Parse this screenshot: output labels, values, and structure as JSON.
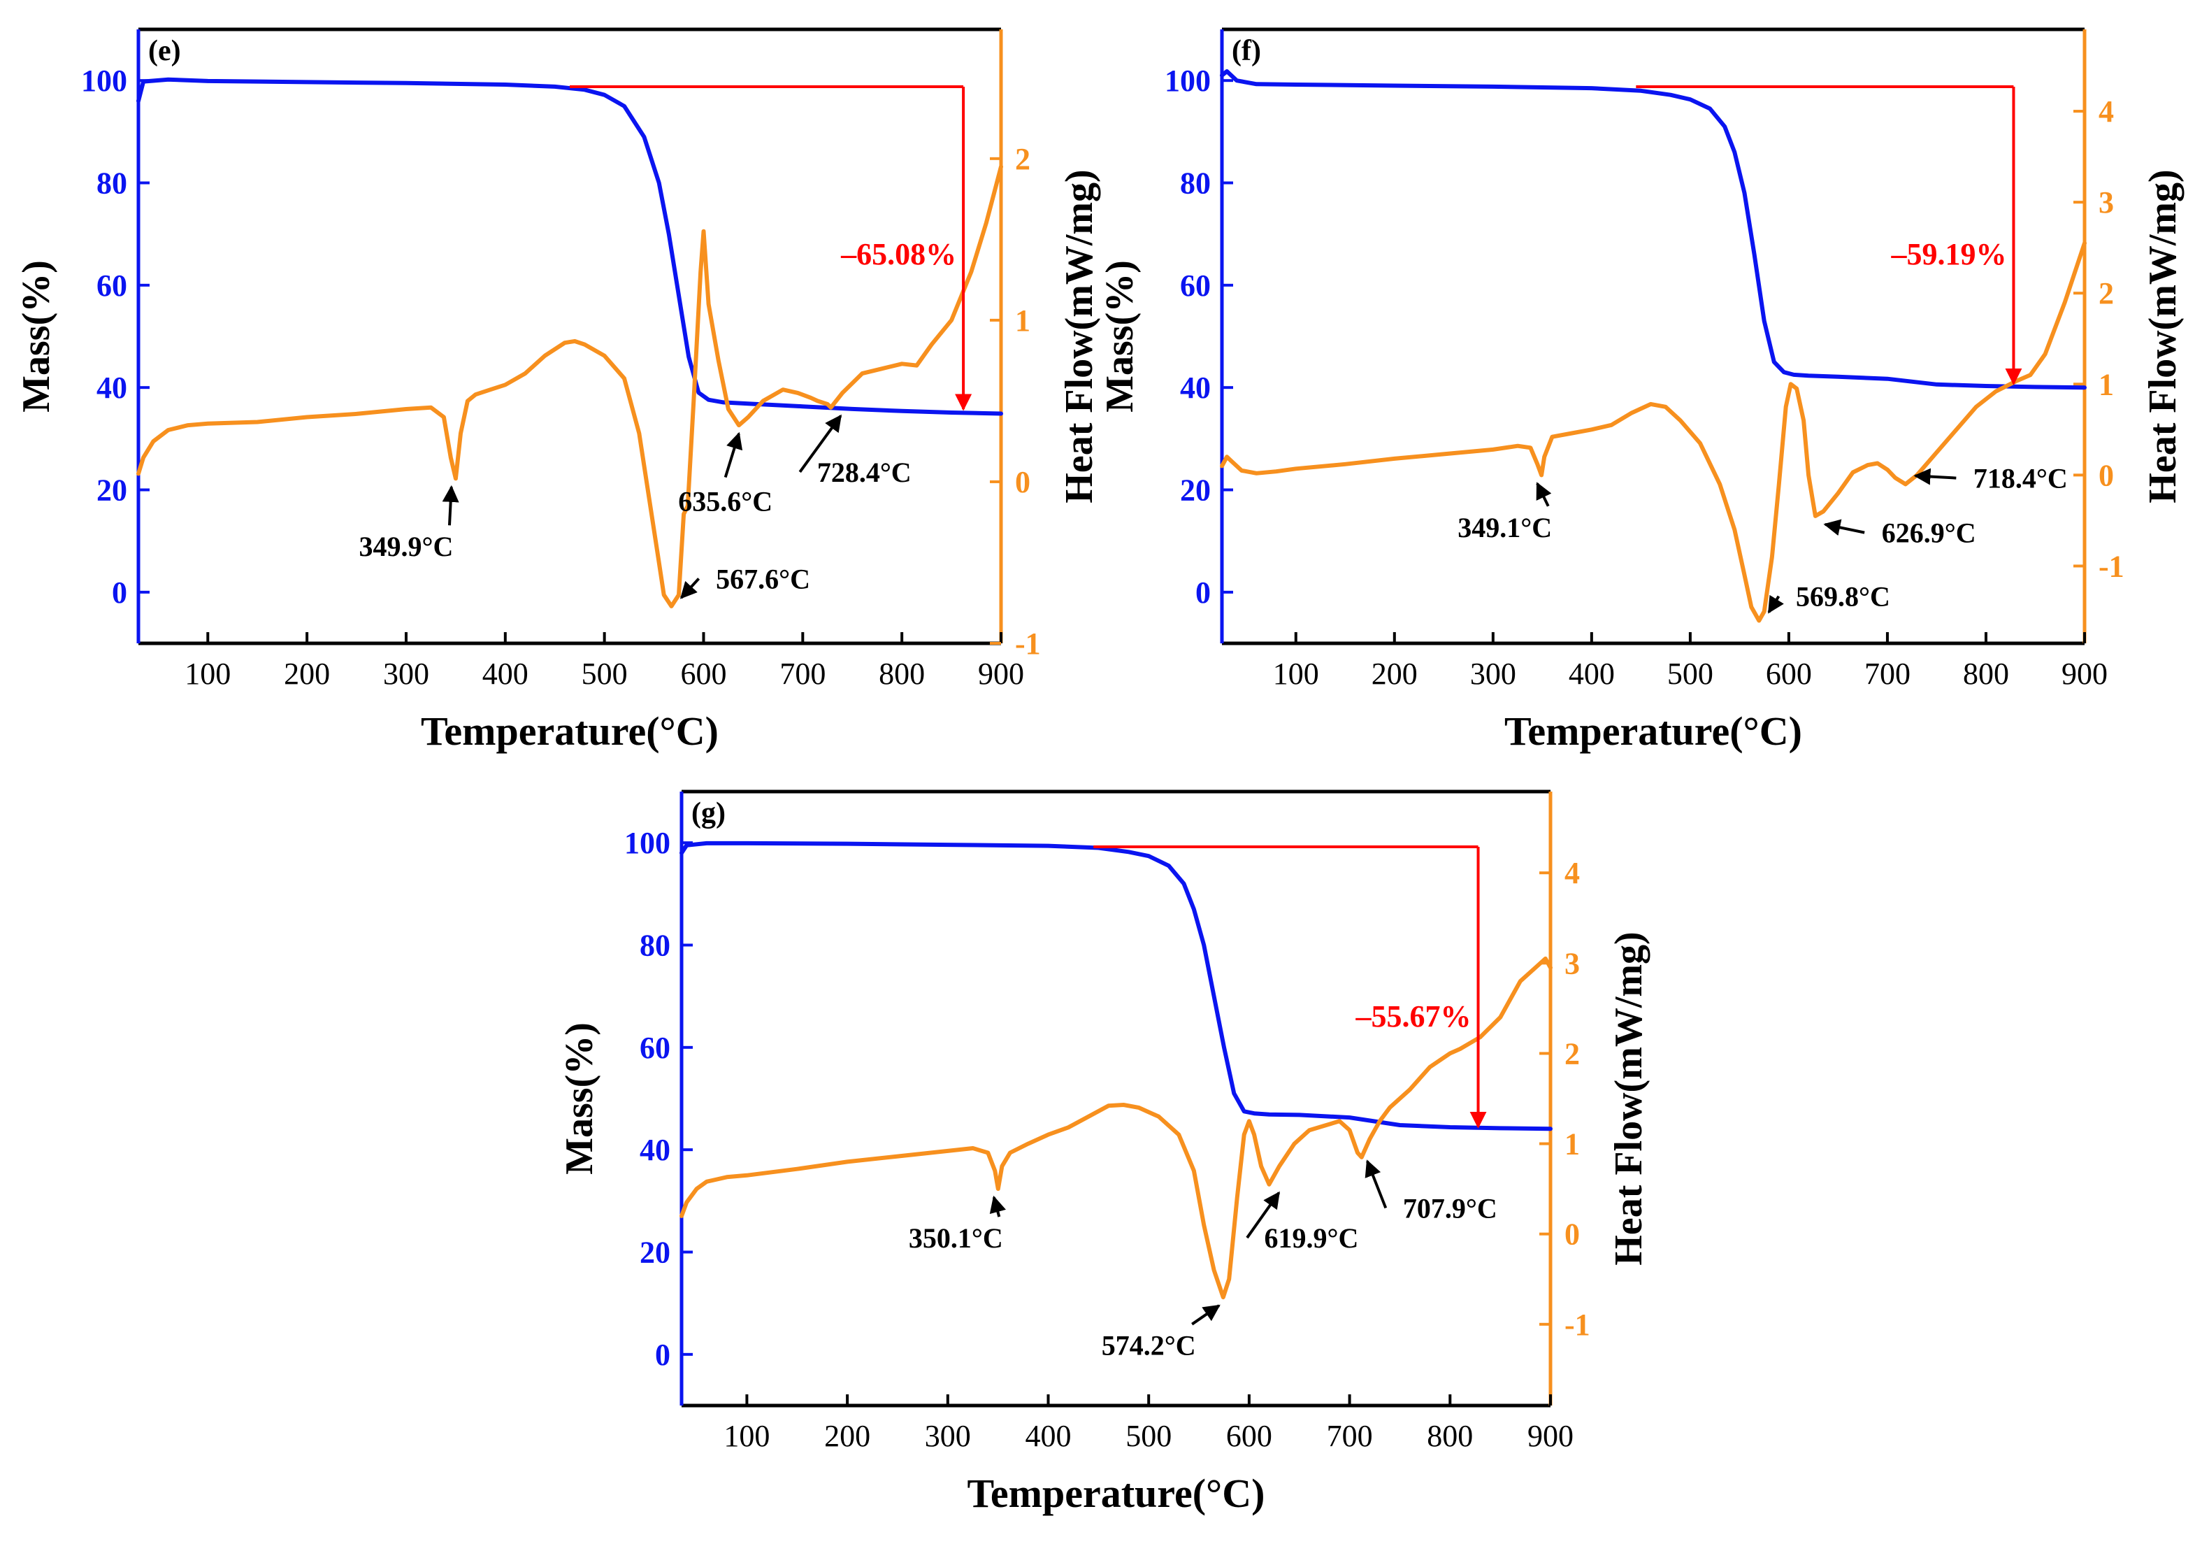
{
  "colors": {
    "mass": "#0a14f0",
    "heat": "#f7901e",
    "loss": "#ff0000",
    "axis": "#000000",
    "text": "#000000"
  },
  "chart_data": [
    {
      "type": "line",
      "panel": "(e)",
      "xlabel": "Temperature(°C)",
      "ylabel_left": "Mass(%)",
      "ylabel_right": "Heat Flow(mW/mg)",
      "xlim": [
        30,
        900
      ],
      "ylim_left": [
        -10,
        110
      ],
      "ylim_right": [
        -1,
        2.8
      ],
      "x_ticks": [
        100,
        200,
        300,
        400,
        500,
        600,
        700,
        800,
        900
      ],
      "y_ticks_left": [
        0,
        20,
        40,
        60,
        80,
        100
      ],
      "y_ticks_right": [
        -1,
        0,
        1,
        2
      ],
      "mass_loss": {
        "label": "–65.08%",
        "y_level": 98.8,
        "start_x": 465,
        "arrow_x": 862,
        "end_mass": 35.5
      },
      "series": [
        {
          "name": "Mass",
          "axis": "left",
          "x": [
            30,
            35,
            60,
            100,
            200,
            300,
            400,
            450,
            480,
            500,
            520,
            540,
            555,
            565,
            575,
            585,
            595,
            605,
            620,
            650,
            700,
            750,
            800,
            850,
            900
          ],
          "y": [
            96,
            99.8,
            100.2,
            99.9,
            99.7,
            99.5,
            99.2,
            98.8,
            98.2,
            97.2,
            95,
            89,
            80,
            70,
            58,
            46,
            39,
            37.6,
            37.1,
            36.8,
            36.3,
            35.8,
            35.4,
            35.1,
            34.9
          ]
        },
        {
          "name": "Heat Flow",
          "axis": "right",
          "x": [
            30,
            35,
            45,
            60,
            80,
            100,
            150,
            200,
            250,
            300,
            325,
            338,
            345,
            350,
            355,
            362,
            370,
            385,
            400,
            420,
            440,
            460,
            470,
            480,
            500,
            520,
            535,
            545,
            555,
            560,
            567.6,
            575,
            580,
            584,
            590,
            597,
            600,
            605,
            615,
            625,
            635.6,
            645,
            660,
            680,
            695,
            708,
            715,
            725,
            728.4,
            740,
            760,
            780,
            800,
            815,
            830,
            850,
            870,
            885,
            900
          ],
          "y": [
            0.05,
            0.15,
            0.25,
            0.32,
            0.35,
            0.36,
            0.37,
            0.4,
            0.42,
            0.45,
            0.46,
            0.4,
            0.15,
            0.02,
            0.3,
            0.5,
            0.54,
            0.57,
            0.6,
            0.67,
            0.78,
            0.86,
            0.87,
            0.85,
            0.78,
            0.64,
            0.3,
            -0.1,
            -0.5,
            -0.7,
            -0.77,
            -0.7,
            -0.2,
            -0.15,
            0.5,
            1.3,
            1.55,
            1.1,
            0.75,
            0.45,
            0.35,
            0.4,
            0.5,
            0.57,
            0.55,
            0.52,
            0.5,
            0.48,
            0.46,
            0.55,
            0.67,
            0.7,
            0.73,
            0.72,
            0.85,
            1.0,
            1.3,
            1.6,
            1.95
          ]
        }
      ],
      "annotations": [
        {
          "text": "349.9°C",
          "x": 349.9,
          "y_heat": 0.02,
          "label_x": 300,
          "label_y_heat": -0.46
        },
        {
          "text": "567.6°C",
          "x": 567.6,
          "y_heat": -0.77,
          "label_x": 660,
          "label_y_heat": -0.66
        },
        {
          "text": "635.6°C",
          "x": 635.6,
          "y_heat": 0.35,
          "label_x": 622,
          "label_y_heat": -0.18
        },
        {
          "text": "728.4°C",
          "x": 728.4,
          "y_heat": 0.46,
          "label_x": 762,
          "label_y_heat": 0.0
        }
      ]
    },
    {
      "type": "line",
      "panel": "(f)",
      "xlabel": "Temperature(°C)",
      "ylabel_left": "Mass(%)",
      "ylabel_right": "Heat Flow(mW/mg)",
      "xlim": [
        25,
        900
      ],
      "ylim_left": [
        -10,
        110
      ],
      "ylim_right": [
        -1.85,
        4.9
      ],
      "x_ticks": [
        100,
        200,
        300,
        400,
        500,
        600,
        700,
        800,
        900
      ],
      "y_ticks_left": [
        0,
        20,
        40,
        60,
        80,
        100
      ],
      "y_ticks_right": [
        -1,
        0,
        1,
        2,
        3,
        4
      ],
      "mass_loss": {
        "label": "–59.19%",
        "y_level": 98.8,
        "start_x": 445,
        "arrow_x": 828,
        "end_mass": 40.5
      },
      "series": [
        {
          "name": "Mass",
          "axis": "left",
          "x": [
            25,
            30,
            40,
            60,
            100,
            200,
            300,
            400,
            450,
            480,
            500,
            520,
            535,
            545,
            555,
            565,
            575,
            585,
            595,
            605,
            620,
            650,
            700,
            750,
            800,
            850,
            900
          ],
          "y": [
            101,
            101.8,
            100,
            99.3,
            99.2,
            99,
            98.8,
            98.5,
            98,
            97.2,
            96.3,
            94.5,
            91,
            86,
            78,
            66,
            53,
            45,
            43,
            42.5,
            42.3,
            42.1,
            41.7,
            40.6,
            40.3,
            40.1,
            40.0
          ]
        },
        {
          "name": "Heat Flow",
          "axis": "right",
          "x": [
            25,
            30,
            35,
            45,
            60,
            80,
            100,
            150,
            200,
            250,
            300,
            325,
            338,
            345,
            349.1,
            352,
            360,
            380,
            400,
            420,
            440,
            460,
            475,
            490,
            510,
            530,
            545,
            555,
            562,
            569.8,
            575,
            583,
            590,
            597,
            602,
            608,
            615,
            620,
            626.9,
            635,
            650,
            665,
            680,
            690,
            700,
            708,
            718.4,
            730,
            750,
            770,
            790,
            810,
            830,
            845,
            860,
            880,
            900
          ],
          "y": [
            0.1,
            0.2,
            0.15,
            0.05,
            0.02,
            0.04,
            0.07,
            0.12,
            0.18,
            0.23,
            0.28,
            0.32,
            0.3,
            0.12,
            0.0,
            0.2,
            0.42,
            0.46,
            0.5,
            0.55,
            0.68,
            0.78,
            0.75,
            0.6,
            0.35,
            -0.1,
            -0.6,
            -1.1,
            -1.45,
            -1.6,
            -1.5,
            -0.9,
            -0.1,
            0.75,
            1.0,
            0.95,
            0.6,
            0.0,
            -0.45,
            -0.4,
            -0.2,
            0.03,
            0.11,
            0.13,
            0.06,
            -0.03,
            -0.1,
            0.0,
            0.25,
            0.5,
            0.75,
            0.92,
            1.03,
            1.1,
            1.33,
            1.9,
            2.55
          ]
        }
      ],
      "annotations": [
        {
          "text": "349.1°C",
          "x": 349.1,
          "y_heat": 0.0,
          "label_x": 312,
          "label_y_heat": -0.68
        },
        {
          "text": "569.8°C",
          "x": 569.8,
          "y_heat": -1.6,
          "label_x": 655,
          "label_y_heat": -1.44
        },
        {
          "text": "626.9°C",
          "x": 626.9,
          "y_heat": -0.45,
          "label_x": 742,
          "label_y_heat": -0.74
        },
        {
          "text": "718.4°C",
          "x": 718.4,
          "y_heat": -0.1,
          "label_x": 835,
          "label_y_heat": -0.14
        }
      ]
    },
    {
      "type": "line",
      "panel": "(g)",
      "xlabel": "Temperature(°C)",
      "ylabel_left": "Mass(%)",
      "ylabel_right": "Heat Flow(mW/mg)",
      "xlim": [
        35,
        900
      ],
      "ylim_left": [
        -10,
        110
      ],
      "ylim_right": [
        -1.9,
        4.9
      ],
      "x_ticks": [
        100,
        200,
        300,
        400,
        500,
        600,
        700,
        800,
        900
      ],
      "y_ticks_left": [
        0,
        20,
        40,
        60,
        80,
        100
      ],
      "y_ticks_right": [
        -1,
        0,
        1,
        2,
        3,
        4
      ],
      "mass_loss": {
        "label": "–55.67%",
        "y_level": 99.2,
        "start_x": 445,
        "arrow_x": 828,
        "end_mass": 44.2
      },
      "series": [
        {
          "name": "Mass",
          "axis": "left",
          "x": [
            35,
            40,
            60,
            100,
            200,
            300,
            400,
            450,
            480,
            500,
            520,
            535,
            545,
            555,
            565,
            575,
            585,
            595,
            605,
            620,
            650,
            700,
            750,
            800,
            850,
            900
          ],
          "y": [
            98,
            99.5,
            99.9,
            99.9,
            99.8,
            99.6,
            99.4,
            99.0,
            98.2,
            97.4,
            95.5,
            92,
            87,
            80,
            70,
            60,
            51,
            47.5,
            47.1,
            46.9,
            46.8,
            46.3,
            44.8,
            44.4,
            44.2,
            44.1
          ]
        },
        {
          "name": "Heat Flow",
          "axis": "right",
          "x": [
            35,
            40,
            50,
            60,
            80,
            100,
            150,
            200,
            250,
            300,
            325,
            340,
            347,
            350.1,
            354,
            362,
            380,
            400,
            420,
            440,
            460,
            475,
            490,
            510,
            530,
            545,
            555,
            565,
            574.2,
            580,
            588,
            595,
            600,
            605,
            612,
            619.9,
            630,
            645,
            660,
            675,
            690,
            700,
            707.9,
            712,
            720,
            730,
            740,
            760,
            780,
            800,
            810,
            830,
            850,
            870,
            885,
            895,
            900
          ],
          "y": [
            0.2,
            0.35,
            0.5,
            0.58,
            0.63,
            0.65,
            0.72,
            0.8,
            0.86,
            0.92,
            0.95,
            0.9,
            0.7,
            0.5,
            0.75,
            0.9,
            1.0,
            1.1,
            1.18,
            1.3,
            1.42,
            1.43,
            1.4,
            1.3,
            1.1,
            0.7,
            0.1,
            -0.4,
            -0.7,
            -0.5,
            0.4,
            1.1,
            1.25,
            1.1,
            0.75,
            0.55,
            0.75,
            1.0,
            1.15,
            1.2,
            1.25,
            1.15,
            0.9,
            0.85,
            1.05,
            1.25,
            1.4,
            1.6,
            1.85,
            2.0,
            2.05,
            2.18,
            2.4,
            2.8,
            2.95,
            3.05,
            2.95
          ]
        }
      ],
      "annotations": [
        {
          "text": "350.1°C",
          "x": 350.1,
          "y_heat": 0.5,
          "label_x": 308,
          "label_y_heat": -0.15
        },
        {
          "text": "574.2°C",
          "x": 574.2,
          "y_heat": -0.7,
          "label_x": 500,
          "label_y_heat": -1.34
        },
        {
          "text": "619.9°C",
          "x": 619.9,
          "y_heat": 0.55,
          "label_x": 662,
          "label_y_heat": -0.15
        },
        {
          "text": "707.9°C",
          "x": 707.9,
          "y_heat": 0.9,
          "label_x": 800,
          "label_y_heat": 0.18
        }
      ]
    }
  ]
}
